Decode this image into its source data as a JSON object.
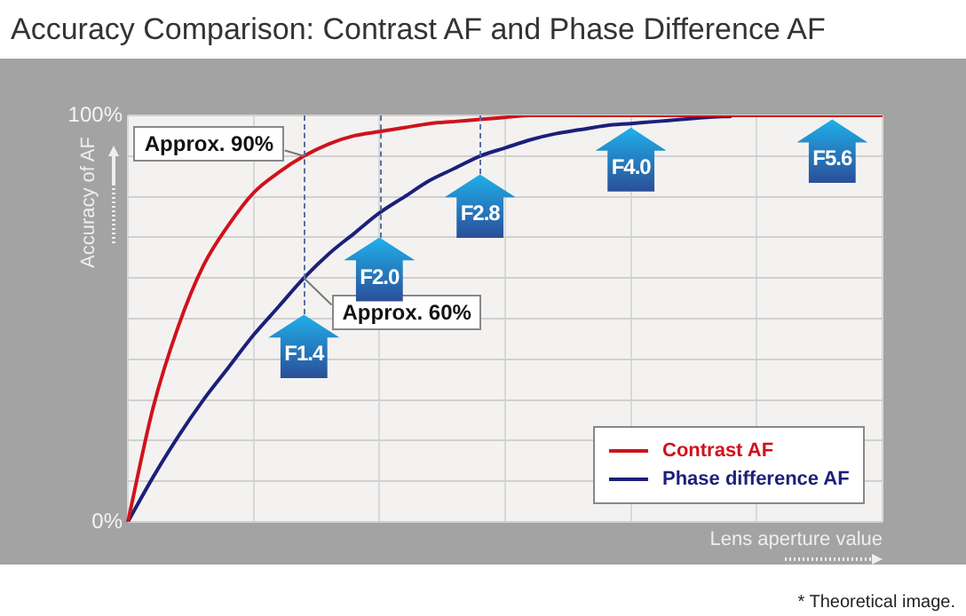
{
  "chart_data": {
    "type": "line",
    "title": "Accuracy Comparison: Contrast AF and Phase Difference AF",
    "xlabel": "Lens aperture value",
    "ylabel": "Accuracy of AF",
    "categories": [
      null,
      null,
      null,
      null,
      null,
      null,
      null,
      null,
      null,
      null,
      null,
      null,
      null,
      null,
      null,
      null,
      null,
      null,
      null,
      null,
      null,
      null,
      null,
      null,
      null,
      null,
      null,
      null,
      null,
      null,
      null
    ],
    "ylim": [
      0,
      100
    ],
    "yticks": [
      {
        "value": 0,
        "label": "0%"
      },
      {
        "value": 10,
        "label": null
      },
      {
        "value": 20,
        "label": null
      },
      {
        "value": 30,
        "label": null
      },
      {
        "value": 40,
        "label": null
      },
      {
        "value": 50,
        "label": null
      },
      {
        "value": 60,
        "label": null
      },
      {
        "value": 70,
        "label": null
      },
      {
        "value": 80,
        "label": null
      },
      {
        "value": 90,
        "label": null
      },
      {
        "value": 100,
        "label": "100%"
      }
    ],
    "tick_labels": "y",
    "grid": true,
    "legend": "bottom right",
    "marker": "none",
    "line_style": "solid",
    "series": [
      {
        "name": "Contrast AF",
        "color": "#d0121b",
        "values": [
          0,
          28,
          48,
          63,
          73,
          81,
          86,
          90,
          93,
          95,
          96,
          97,
          98,
          98.5,
          99,
          99.5,
          100,
          100,
          100,
          100,
          100,
          100,
          100,
          100,
          100,
          100,
          100,
          100,
          100,
          100,
          100
        ]
      },
      {
        "name": "Phase difference AF",
        "color": "#1c1f7a",
        "values": [
          0,
          11,
          21,
          30,
          38,
          46,
          53,
          60,
          66,
          71,
          76,
          80,
          84,
          87,
          90,
          92,
          94,
          95.5,
          96.5,
          97.5,
          98,
          98.5,
          99,
          99.5,
          99.8,
          null,
          null,
          null,
          null,
          null,
          null
        ]
      }
    ],
    "annotations": [
      "Approx. 90%",
      "Approx. 60%",
      "F1.4",
      "F2.0",
      "F2.8",
      "F4.0",
      "F5.6",
      "* Theoretical image."
    ]
  }
}
